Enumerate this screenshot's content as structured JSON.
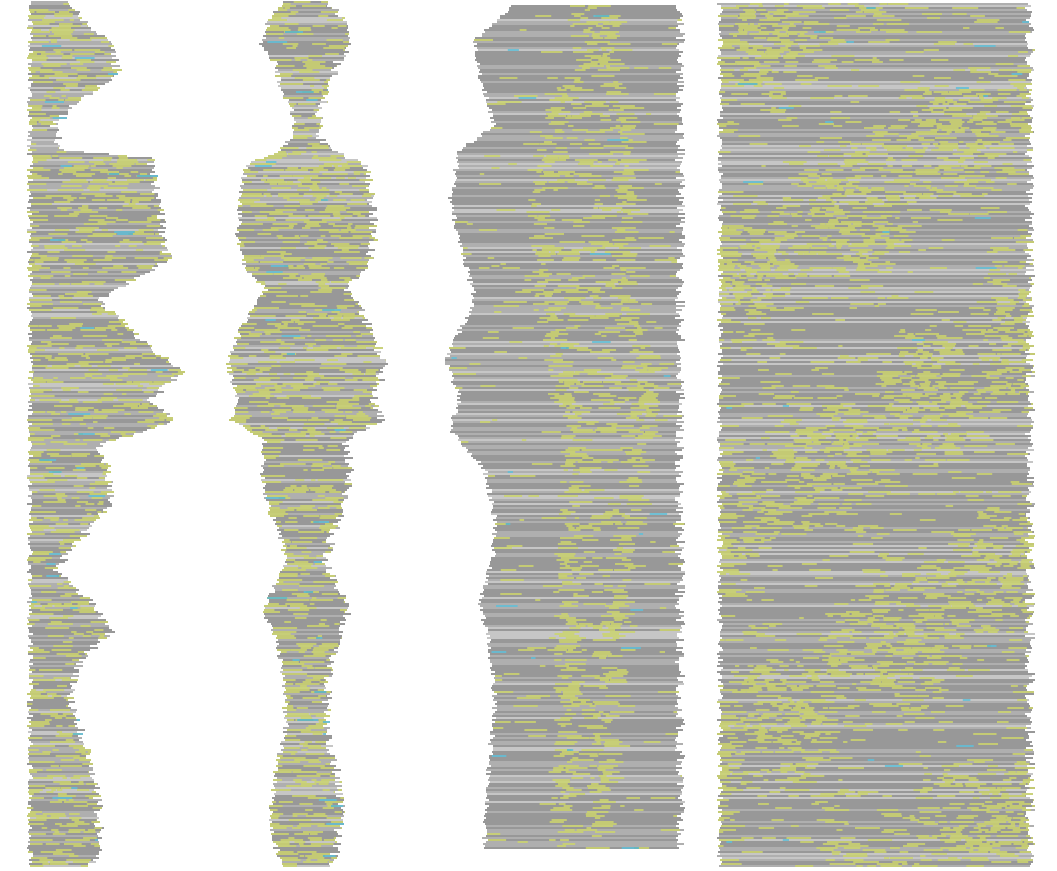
{
  "colors": {
    "background": "#ffffff",
    "line_dark": "#5b5b5b",
    "line_mid": "#7f7f7f",
    "line_light": "#a3a3a3",
    "highlight": "#b9c43b",
    "accent": "#2aa7c8"
  },
  "panels": [
    {
      "id": "p1",
      "kind": "left-aligned-profile"
    },
    {
      "id": "p2",
      "kind": "center-symmetric-profile"
    },
    {
      "id": "p3",
      "kind": "right-aligned-figure-scan"
    },
    {
      "id": "p4",
      "kind": "full-rectangle-scan"
    }
  ]
}
